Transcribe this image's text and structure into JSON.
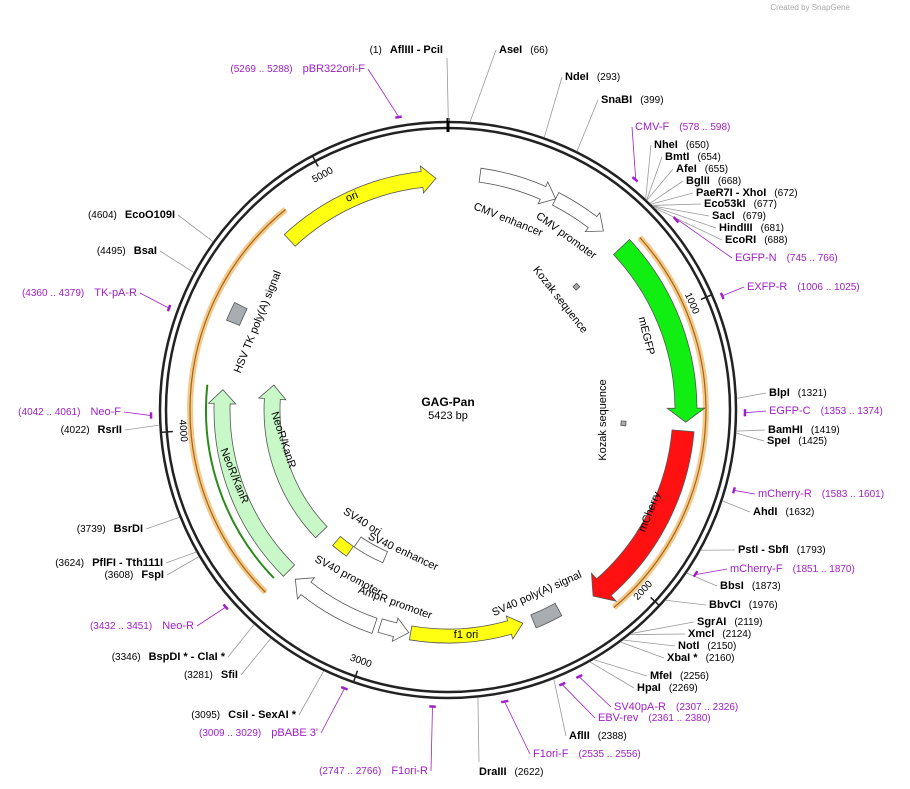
{
  "header": {
    "credit": "Created by SnapGene"
  },
  "map": {
    "name": "GAG-Pan",
    "length": "5423 bp",
    "ring_ticks": [
      1000,
      2000,
      3000,
      4000,
      5000
    ]
  },
  "enzymes": [
    {
      "name": "AflIII  - PciI",
      "site": "(1)"
    },
    {
      "name": "AseI",
      "site": "(66)"
    },
    {
      "name": "NdeI",
      "site": "(293)"
    },
    {
      "name": "SnaBI",
      "site": "(399)"
    },
    {
      "name": "NheI",
      "site": "(650)"
    },
    {
      "name": "BmtI",
      "site": "(654)"
    },
    {
      "name": "AfeI",
      "site": "(655)"
    },
    {
      "name": "BglII",
      "site": "(668)"
    },
    {
      "name": "PaeR7I  - XhoI",
      "site": "(672)"
    },
    {
      "name": "Eco53kI",
      "site": "(677)"
    },
    {
      "name": "SacI",
      "site": "(679)"
    },
    {
      "name": "HindIII",
      "site": "(681)"
    },
    {
      "name": "EcoRI",
      "site": "(688)"
    },
    {
      "name": "BlpI",
      "site": "(1321)"
    },
    {
      "name": "BamHI",
      "site": "(1419)"
    },
    {
      "name": "SpeI",
      "site": "(1425)"
    },
    {
      "name": "AhdI",
      "site": "(1632)"
    },
    {
      "name": "PstI  - SbfI",
      "site": "(1793)"
    },
    {
      "name": "BbsI",
      "site": "(1873)"
    },
    {
      "name": "BbvCI",
      "site": "(1976)"
    },
    {
      "name": "SgrAI",
      "site": "(2119)"
    },
    {
      "name": "XmcI",
      "site": "(2124)"
    },
    {
      "name": "NotI",
      "site": "(2150)"
    },
    {
      "name": "XbaI *",
      "site": "(2160)"
    },
    {
      "name": "MfeI",
      "site": "(2256)"
    },
    {
      "name": "HpaI",
      "site": "(2269)"
    },
    {
      "name": "AflII",
      "site": "(2388)"
    },
    {
      "name": "DraIII",
      "site": "(2622)"
    },
    {
      "name": "CsiI  - SexAI *",
      "site": "(3095)"
    },
    {
      "name": "SfiI",
      "site": "(3281)"
    },
    {
      "name": "BspDI *  - ClaI *",
      "site": "(3346)"
    },
    {
      "name": "FspI",
      "site": "(3608)"
    },
    {
      "name": "PflFI  - Tth111I",
      "site": "(3624)"
    },
    {
      "name": "BsrDI",
      "site": "(3739)"
    },
    {
      "name": "RsrII",
      "site": "(4022)"
    },
    {
      "name": "BsaI",
      "site": "(4495)"
    },
    {
      "name": "EcoO109I",
      "site": "(4604)"
    }
  ],
  "primers": [
    {
      "name": "CMV-F",
      "range": "(578 .. 598)"
    },
    {
      "name": "EGFP-N",
      "range": "(745 .. 766)"
    },
    {
      "name": "EXFP-R",
      "range": "(1006 .. 1025)"
    },
    {
      "name": "EGFP-C",
      "range": "(1353 .. 1374)"
    },
    {
      "name": "mCherry-R",
      "range": "(1583 .. 1601)"
    },
    {
      "name": "mCherry-F",
      "range": "(1851 .. 1870)"
    },
    {
      "name": "SV40pA-R",
      "range": "(2307 .. 2326)"
    },
    {
      "name": "EBV-rev",
      "range": "(2361 .. 2380)"
    },
    {
      "name": "F1ori-F",
      "range": "(2535 .. 2556)"
    },
    {
      "name": "F1ori-R",
      "range": "(2747 .. 2766)"
    },
    {
      "name": "pBABE 3'",
      "range": "(3009 .. 3029)"
    },
    {
      "name": "Neo-R",
      "range": "(3432 .. 3451)"
    },
    {
      "name": "Neo-F",
      "range": "(4042 .. 4061)"
    },
    {
      "name": "TK-pA-R",
      "range": "(4360 .. 4379)"
    },
    {
      "name": "pBR322ori-F",
      "range": "(5269 .. 5288)"
    }
  ],
  "features": [
    {
      "label": "CMV enhancer"
    },
    {
      "label": "CMV promoter"
    },
    {
      "label": "Kozak sequence"
    },
    {
      "label": "mEGFP"
    },
    {
      "label": "Kozak sequence"
    },
    {
      "label": "mCherry"
    },
    {
      "label": "SV40 poly(A) signal"
    },
    {
      "label": "f1 ori"
    },
    {
      "label": "AmpR promoter"
    },
    {
      "label": "SV40 promoter"
    },
    {
      "label": "SV40 enhancer"
    },
    {
      "label": "SV40 ori"
    },
    {
      "label": "NeoR/KanR"
    },
    {
      "label": "NeoR/KanR"
    },
    {
      "label": "HSV TK poly(A) signal"
    },
    {
      "label": "ori"
    }
  ]
}
